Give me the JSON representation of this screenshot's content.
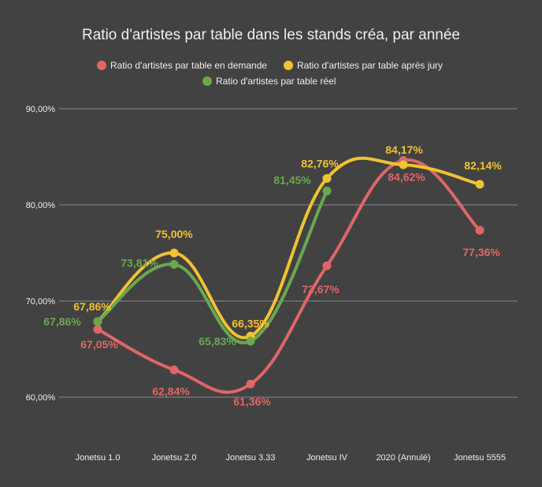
{
  "chart_data": {
    "type": "line",
    "title": "Ratio d'artistes par table dans les stands créa, par année",
    "categories": [
      "Jonetsu 1.0",
      "Jonetsu 2.0",
      "Jonetsu 3.33",
      "Jonetsu IV",
      "2020 (Annulé)",
      "Jonetsu 5555"
    ],
    "ylim": [
      60,
      90
    ],
    "y_ticks": [
      60,
      70,
      80,
      90
    ],
    "y_tick_labels": [
      "60,00%",
      "70,00%",
      "80,00%",
      "90,00%"
    ],
    "grid": true,
    "legend_position": "top",
    "series": [
      {
        "name": "Ratio d'artistes par table en demande",
        "color": "#e06666",
        "values": [
          67.05,
          62.84,
          61.36,
          73.67,
          84.62,
          77.36
        ],
        "labels": [
          "67,05%",
          "62,84%",
          "61,36%",
          "73,67%",
          "84,62%",
          "77,36%"
        ]
      },
      {
        "name": "Ratio d'artistes par table après jury",
        "color": "#f1c232",
        "values": [
          67.86,
          75.0,
          66.35,
          82.76,
          84.17,
          82.14
        ],
        "labels": [
          "67,86%",
          "75,00%",
          "66,35%",
          "82,76%",
          "84,17%",
          "82,14%"
        ]
      },
      {
        "name": "Ratio d'artistes par table réel",
        "color": "#6aa84f",
        "values": [
          67.86,
          73.81,
          65.83,
          81.45,
          null,
          null
        ],
        "labels": [
          "67,86%",
          "73,81%",
          "65,83%",
          "81,45%",
          "",
          ""
        ]
      }
    ]
  }
}
